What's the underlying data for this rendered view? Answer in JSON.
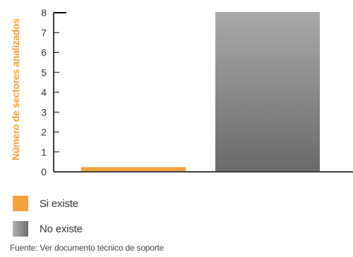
{
  "chart_data": {
    "type": "bar",
    "categories": [
      "Si existe",
      "No existe"
    ],
    "values": [
      0.2,
      8
    ],
    "ylabel": "Número de sectores analizados",
    "ylim": [
      0,
      8
    ],
    "yticks": [
      "0",
      "1",
      "2",
      "3",
      "4",
      "5",
      "6",
      "7",
      "8"
    ],
    "grid": false,
    "legend": "bottom-left",
    "colors": [
      "#f7a13c",
      "#8e8e8e"
    ],
    "ylabel_color": "#f7a13c"
  },
  "legend": {
    "items": [
      {
        "label": "Si existe",
        "color": "#f7a13c"
      },
      {
        "label": "No existe",
        "color": "#8e8e8e"
      }
    ]
  },
  "source": "Fuente: Ver documento técnico de soporte"
}
